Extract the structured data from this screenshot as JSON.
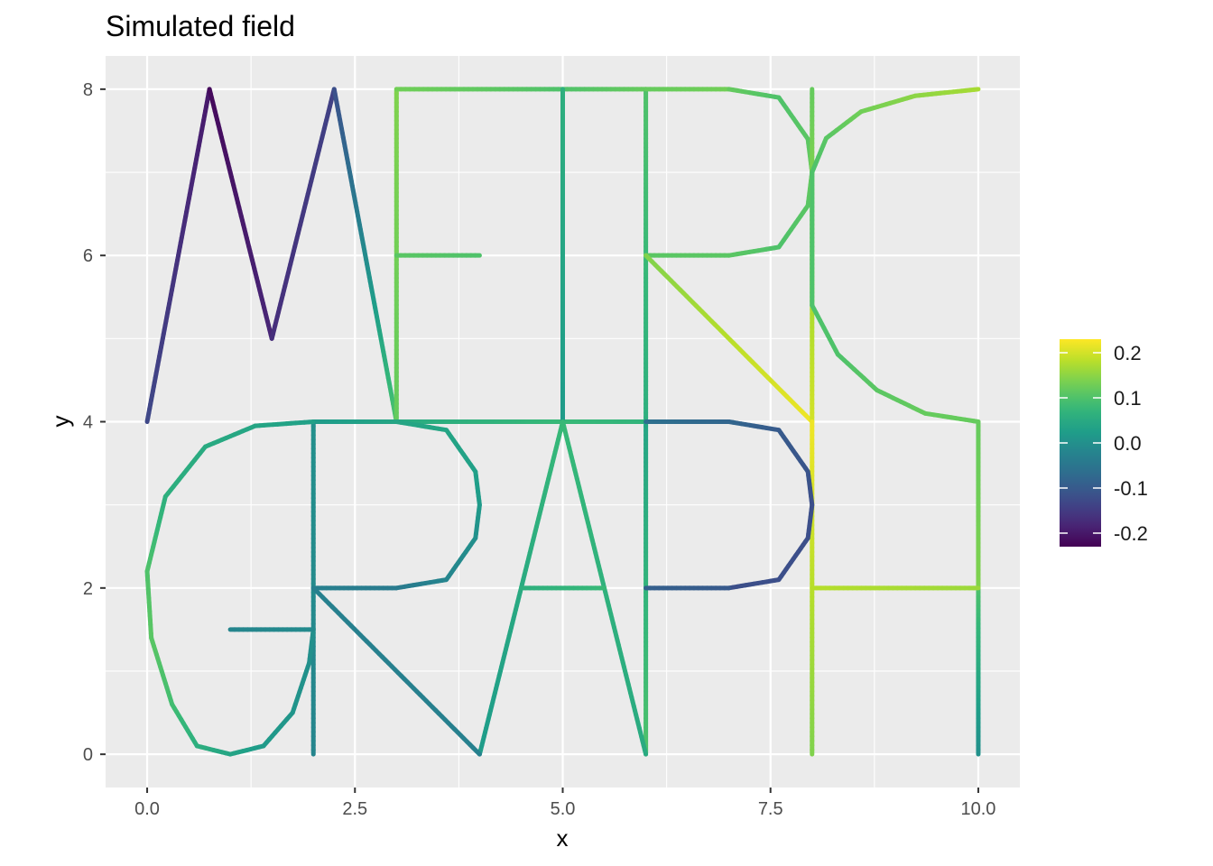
{
  "chart_data": {
    "type": "line",
    "title": "Simulated field",
    "xlabel": "x",
    "ylabel": "y",
    "xlim": [
      -0.5,
      10.5
    ],
    "ylim": [
      -0.4,
      8.4
    ],
    "x_ticks": [
      {
        "value": 0,
        "label": "0.0"
      },
      {
        "value": 2.5,
        "label": "2.5"
      },
      {
        "value": 5,
        "label": "5.0"
      },
      {
        "value": 7.5,
        "label": "7.5"
      },
      {
        "value": 10,
        "label": "10.0"
      }
    ],
    "y_ticks": [
      {
        "value": 0,
        "label": "0"
      },
      {
        "value": 2,
        "label": "2"
      },
      {
        "value": 4,
        "label": "4"
      },
      {
        "value": 6,
        "label": "6"
      },
      {
        "value": 8,
        "label": "8"
      }
    ],
    "grid": true,
    "legend_position": "right",
    "colorscale": "viridis",
    "color_range": [
      -0.23,
      0.23
    ],
    "legend_ticks": [
      {
        "value": 0.2,
        "label": "0.2"
      },
      {
        "value": 0.1,
        "label": "0.1"
      },
      {
        "value": 0.0,
        "label": "0.0"
      },
      {
        "value": -0.1,
        "label": "-0.1"
      },
      {
        "value": -0.2,
        "label": "-0.2"
      }
    ],
    "edges": [
      {
        "points": [
          [
            0,
            4
          ],
          [
            0.75,
            8
          ]
        ],
        "values": [
          -0.13,
          -0.2
        ]
      },
      {
        "points": [
          [
            0.75,
            8
          ],
          [
            1.5,
            5
          ]
        ],
        "values": [
          -0.22,
          -0.18
        ]
      },
      {
        "points": [
          [
            1.5,
            5
          ],
          [
            2.25,
            8
          ]
        ],
        "values": [
          -0.17,
          -0.14
        ]
      },
      {
        "points": [
          [
            2.25,
            8
          ],
          [
            3,
            4
          ]
        ],
        "values": [
          -0.12,
          0.1
        ]
      },
      {
        "points": [
          [
            3,
            4
          ],
          [
            3,
            8
          ]
        ],
        "values": [
          0.12,
          0.14
        ]
      },
      {
        "points": [
          [
            3,
            6
          ],
          [
            4,
            6
          ]
        ],
        "values": [
          0.11,
          0.1
        ]
      },
      {
        "points": [
          [
            3,
            8
          ],
          [
            5,
            8
          ]
        ],
        "values": [
          0.13,
          0.1
        ]
      },
      {
        "points": [
          [
            5,
            8
          ],
          [
            6,
            8
          ]
        ],
        "values": [
          0.1,
          0.12
        ]
      },
      {
        "points": [
          [
            3,
            4
          ],
          [
            5,
            4
          ]
        ],
        "values": [
          0.05,
          0.08
        ]
      },
      {
        "points": [
          [
            5,
            4
          ],
          [
            6,
            4
          ]
        ],
        "values": [
          0.08,
          0.07
        ]
      },
      {
        "points": [
          [
            5,
            4
          ],
          [
            5,
            8
          ]
        ],
        "values": [
          0.02,
          0.06
        ]
      },
      {
        "points": [
          [
            6,
            4
          ],
          [
            6,
            8
          ]
        ],
        "values": [
          0.06,
          0.1
        ]
      },
      {
        "points": [
          [
            6,
            8
          ],
          [
            7,
            8
          ]
        ],
        "values": [
          0.12,
          0.13
        ]
      },
      {
        "points": [
          [
            7,
            8
          ],
          [
            7.6,
            7.9
          ],
          [
            7.95,
            7.4
          ],
          [
            8,
            7
          ],
          [
            7.95,
            6.6
          ],
          [
            7.6,
            6.1
          ],
          [
            7,
            6
          ]
        ],
        "values": [
          0.12,
          0.1,
          0.11,
          0.12,
          0.11,
          0.1,
          0.11
        ]
      },
      {
        "points": [
          [
            6,
            6
          ],
          [
            7,
            6
          ]
        ],
        "values": [
          0.11,
          0.11
        ]
      },
      {
        "points": [
          [
            6,
            6
          ],
          [
            8,
            4
          ]
        ],
        "values": [
          0.14,
          0.22
        ]
      },
      {
        "points": [
          [
            8,
            4
          ],
          [
            8,
            8
          ]
        ],
        "values": [
          0.2,
          0.12
        ]
      },
      {
        "points": [
          [
            10,
            8
          ],
          [
            9.24,
            7.92
          ],
          [
            8.59,
            7.73
          ],
          [
            8.17,
            7.41
          ],
          [
            8,
            7
          ],
          [
            8,
            6
          ],
          [
            8,
            5.4
          ],
          [
            8.31,
            4.81
          ],
          [
            8.78,
            4.38
          ],
          [
            9.36,
            4.1
          ],
          [
            10,
            4
          ]
        ],
        "values": [
          0.17,
          0.15,
          0.13,
          0.11,
          0.1,
          0.1,
          0.1,
          0.1,
          0.11,
          0.12,
          0.12
        ]
      },
      {
        "points": [
          [
            10,
            4
          ],
          [
            10,
            2
          ]
        ],
        "values": [
          0.12,
          0.14
        ]
      },
      {
        "points": [
          [
            10,
            2
          ],
          [
            10,
            0
          ]
        ],
        "values": [
          0.1,
          0.0
        ]
      },
      {
        "points": [
          [
            8,
            2
          ],
          [
            10,
            2
          ]
        ],
        "values": [
          0.18,
          0.16
        ]
      },
      {
        "points": [
          [
            8,
            0
          ],
          [
            8,
            4
          ]
        ],
        "values": [
          0.14,
          0.22
        ]
      },
      {
        "points": [
          [
            6,
            0
          ],
          [
            6,
            4
          ]
        ],
        "values": [
          0.1,
          0.04
        ]
      },
      {
        "points": [
          [
            6,
            4
          ],
          [
            7,
            4
          ]
        ],
        "values": [
          -0.06,
          -0.08
        ]
      },
      {
        "points": [
          [
            7,
            4
          ],
          [
            7.6,
            3.9
          ],
          [
            7.95,
            3.4
          ],
          [
            8,
            3
          ],
          [
            7.95,
            2.6
          ],
          [
            7.6,
            2.1
          ],
          [
            7,
            2
          ]
        ],
        "values": [
          -0.08,
          -0.1,
          -0.11,
          -0.12,
          -0.12,
          -0.12,
          -0.12
        ]
      },
      {
        "points": [
          [
            6,
            2
          ],
          [
            7,
            2
          ]
        ],
        "values": [
          -0.09,
          -0.1
        ]
      },
      {
        "points": [
          [
            4,
            0
          ],
          [
            5,
            4
          ]
        ],
        "values": [
          0.02,
          0.08
        ]
      },
      {
        "points": [
          [
            5,
            4
          ],
          [
            6,
            0
          ]
        ],
        "values": [
          0.08,
          0.05
        ]
      },
      {
        "points": [
          [
            4.5,
            2
          ],
          [
            5.5,
            2
          ]
        ],
        "values": [
          0.06,
          0.08
        ]
      },
      {
        "points": [
          [
            2,
            4
          ],
          [
            3,
            4
          ]
        ],
        "values": [
          0.02,
          0.04
        ]
      },
      {
        "points": [
          [
            3,
            4
          ],
          [
            3.6,
            3.9
          ],
          [
            3.95,
            3.4
          ],
          [
            4,
            3
          ],
          [
            3.95,
            2.6
          ],
          [
            3.6,
            2.1
          ],
          [
            3,
            2
          ]
        ],
        "values": [
          0.04,
          0.04,
          0.03,
          0.02,
          0.0,
          -0.02,
          -0.04
        ]
      },
      {
        "points": [
          [
            2,
            2
          ],
          [
            3,
            2
          ]
        ],
        "values": [
          -0.03,
          -0.04
        ]
      },
      {
        "points": [
          [
            2,
            0
          ],
          [
            2,
            4
          ]
        ],
        "values": [
          -0.02,
          0.0
        ]
      },
      {
        "points": [
          [
            2,
            2
          ],
          [
            4,
            0
          ]
        ],
        "values": [
          -0.03,
          -0.03
        ]
      },
      {
        "points": [
          [
            2,
            4
          ],
          [
            1.3,
            3.95
          ],
          [
            0.7,
            3.7
          ],
          [
            0.22,
            3.1
          ],
          [
            0.0,
            2.2
          ],
          [
            0.05,
            1.4
          ],
          [
            0.3,
            0.6
          ],
          [
            0.6,
            0.1
          ],
          [
            1.0,
            0.0
          ],
          [
            1.4,
            0.1
          ],
          [
            1.75,
            0.5
          ],
          [
            1.95,
            1.1
          ],
          [
            2,
            1.5
          ]
        ],
        "values": [
          0.03,
          0.04,
          0.05,
          0.06,
          0.1,
          0.11,
          0.09,
          0.06,
          0.04,
          0.02,
          0.01,
          0.0,
          0.0
        ]
      },
      {
        "points": [
          [
            1,
            1.5
          ],
          [
            2,
            1.5
          ]
        ],
        "values": [
          -0.02,
          -0.01
        ]
      }
    ]
  }
}
